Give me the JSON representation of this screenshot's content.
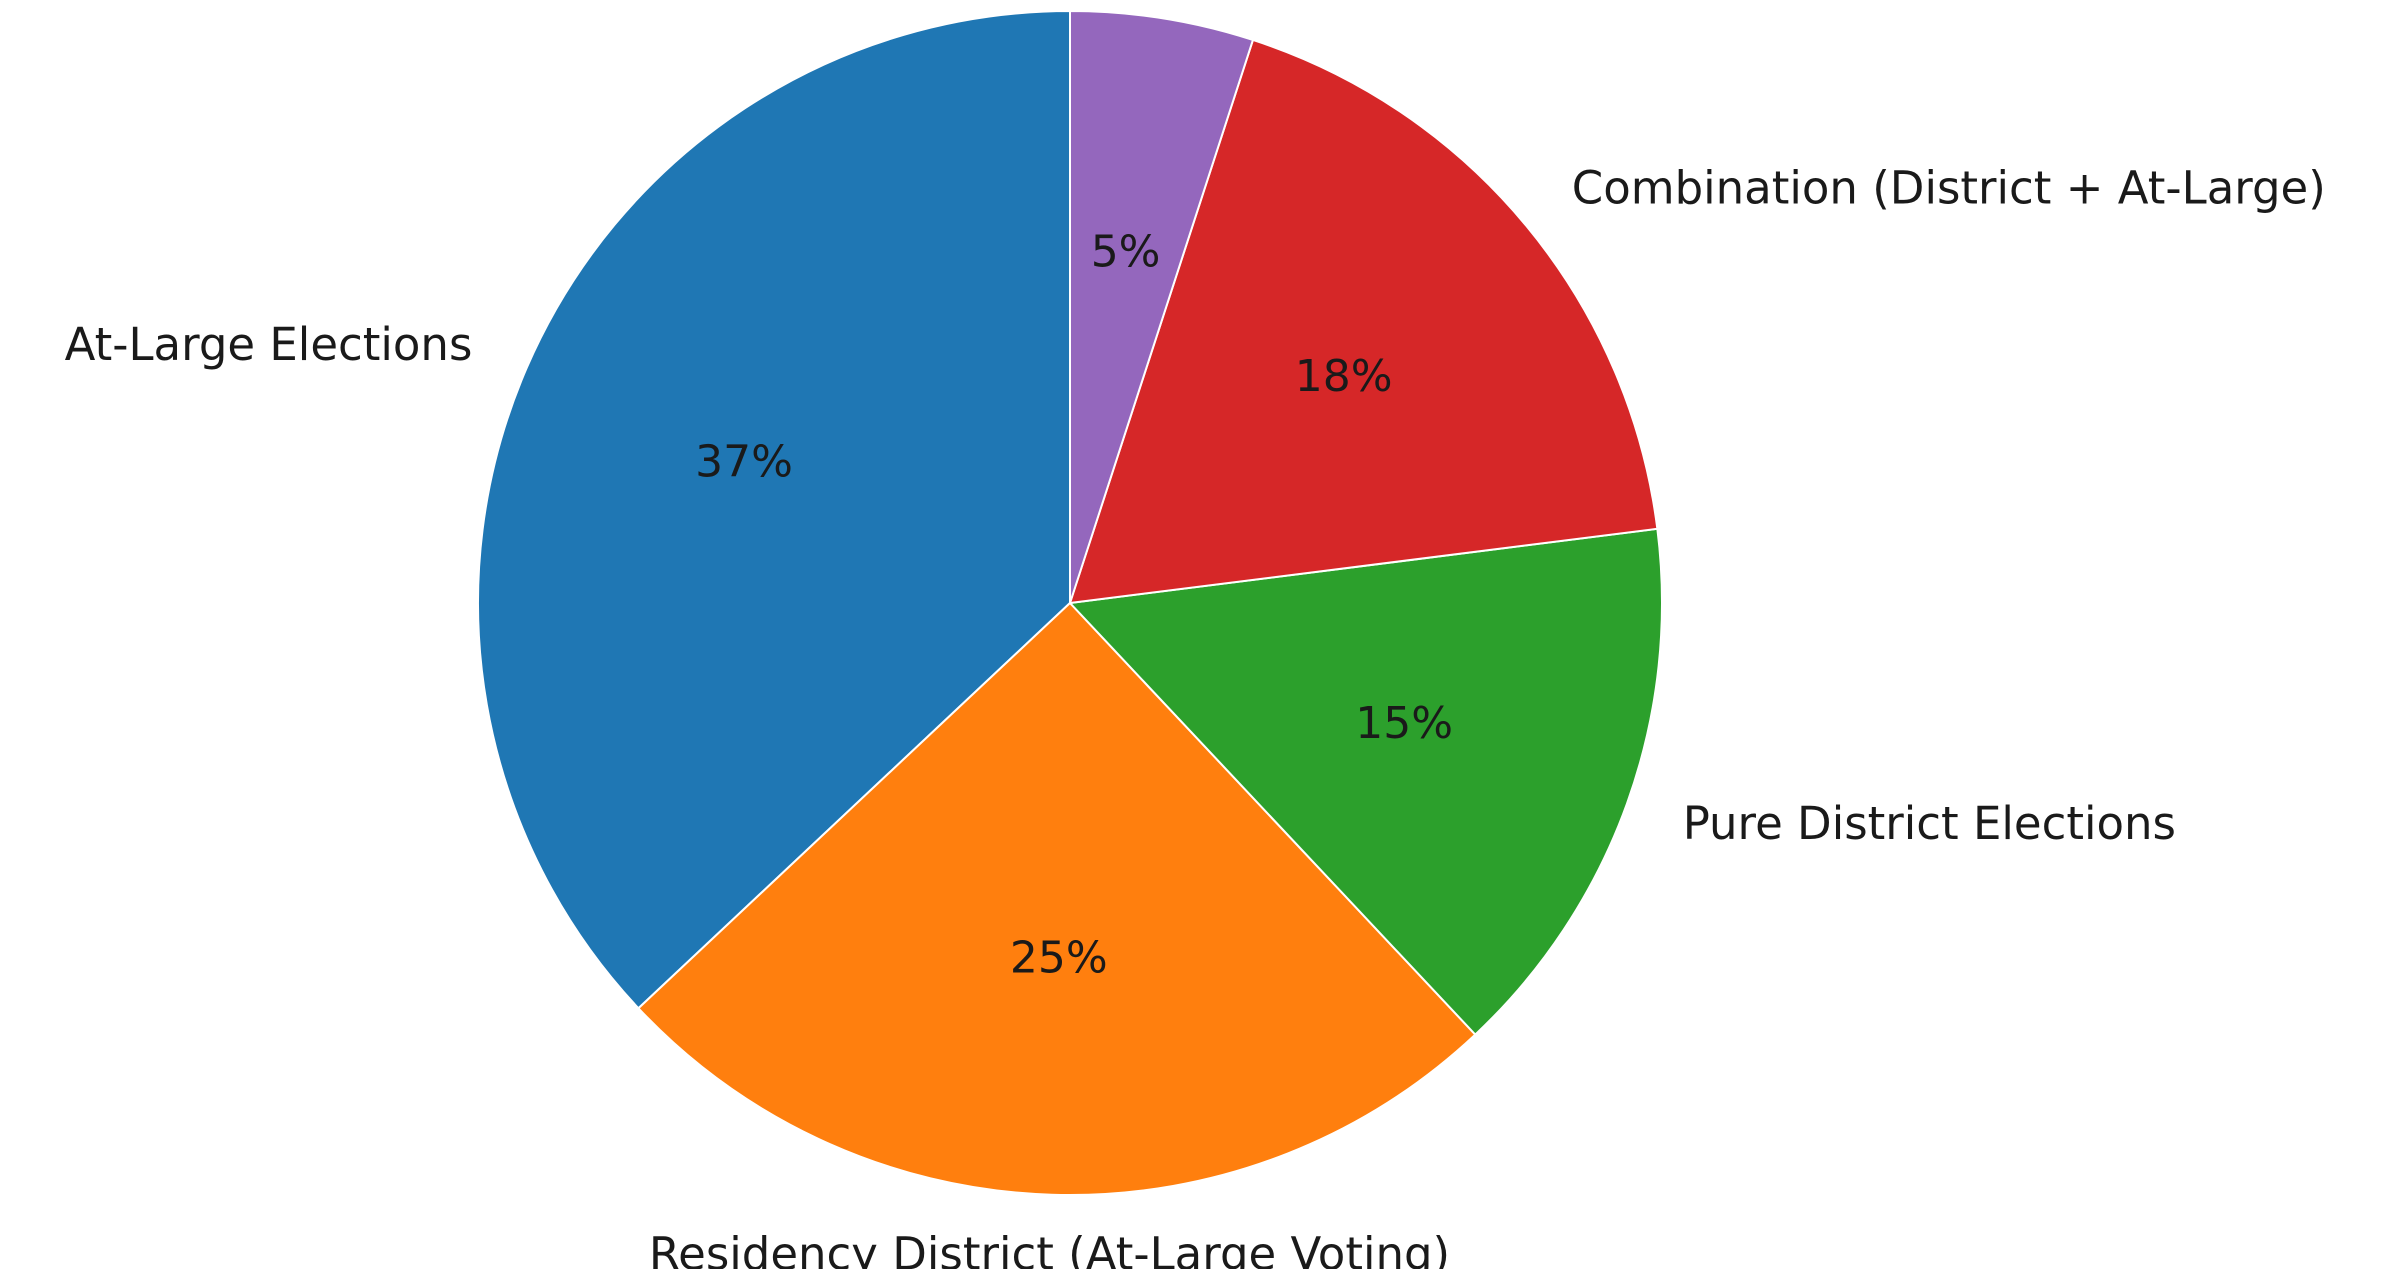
{
  "chart_data": {
    "type": "pie",
    "title": "",
    "start_angle_deg": 90,
    "direction": "counterclockwise",
    "slices": [
      {
        "label": "At-Large Elections",
        "value": 37,
        "value_label": "37%",
        "color": "#1f77b4"
      },
      {
        "label": "Residency District (At-Large Voting)",
        "value": 25,
        "value_label": "25%",
        "color": "#ff7f0e"
      },
      {
        "label": "Pure District Elections",
        "value": 15,
        "value_label": "15%",
        "color": "#2ca02c"
      },
      {
        "label": "Combination (District + At-Large)",
        "value": 18,
        "value_label": "18%",
        "color": "#d62728"
      },
      {
        "label": "",
        "value": 5,
        "value_label": "5%",
        "color": "#9467bd"
      }
    ]
  }
}
